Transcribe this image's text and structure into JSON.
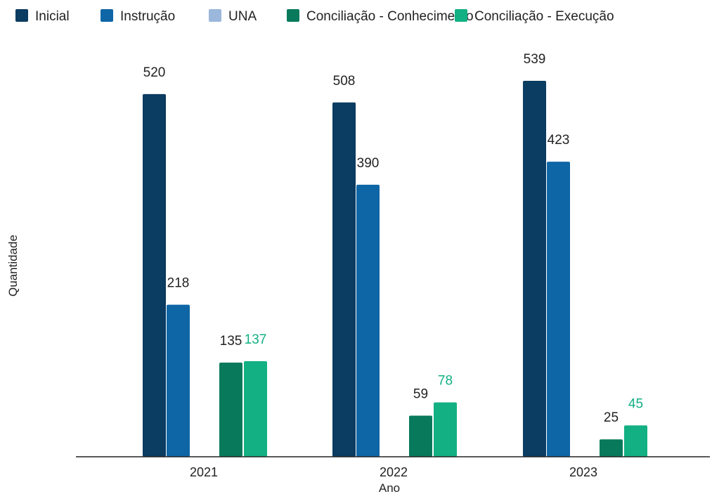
{
  "chart_data": {
    "type": "bar",
    "title": "",
    "xlabel": "Ano",
    "ylabel": "Quantidade",
    "categories": [
      "2021",
      "2022",
      "2023"
    ],
    "ylim": [
      0,
      600
    ],
    "grid": false,
    "legend_position": "top",
    "series": [
      {
        "name": "Inicial",
        "color": "#0b3c61",
        "label_color": "#222222",
        "values": [
          520,
          508,
          539
        ]
      },
      {
        "name": "Instrução",
        "color": "#0f66a6",
        "label_color": "#222222",
        "values": [
          218,
          390,
          423
        ]
      },
      {
        "name": "UNA",
        "color": "#9bb7dc",
        "label_color": "#222222",
        "values": [
          null,
          null,
          null
        ]
      },
      {
        "name": "Conciliação - Conhecimento",
        "color": "#087a5b",
        "label_color": "#222222",
        "values": [
          135,
          59,
          25
        ]
      },
      {
        "name": "Conciliação - Execução",
        "color": "#12b083",
        "label_color": "#12b083",
        "values": [
          137,
          78,
          45
        ]
      }
    ]
  }
}
